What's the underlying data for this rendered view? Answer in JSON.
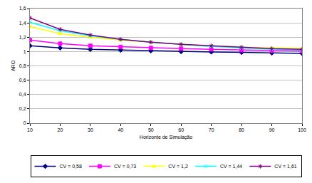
{
  "chart_data": {
    "type": "line",
    "x_label": "Horizonte de Simulação",
    "y_label": "ARO",
    "x": [
      10,
      20,
      30,
      40,
      50,
      60,
      70,
      80,
      90,
      100
    ],
    "series": [
      {
        "name": "CV = 0,58",
        "color": "#000080",
        "marker": "diamond",
        "values": [
          1.08,
          1.05,
          1.03,
          1.02,
          1.01,
          1.0,
          0.995,
          0.99,
          0.98,
          0.975
        ]
      },
      {
        "name": "CV = 0,73",
        "color": "#ff00ff",
        "marker": "square",
        "values": [
          1.16,
          1.11,
          1.08,
          1.065,
          1.05,
          1.04,
          1.03,
          1.02,
          1.01,
          1.005
        ]
      },
      {
        "name": "CV = 1,2",
        "color": "#ffff00",
        "marker": "triangle",
        "values": [
          1.35,
          1.25,
          1.2,
          1.16,
          1.13,
          1.1,
          1.08,
          1.06,
          1.05,
          1.04
        ]
      },
      {
        "name": "CV = 1,44",
        "color": "#00ffff",
        "marker": "x",
        "values": [
          1.41,
          1.29,
          1.22,
          1.17,
          1.13,
          1.1,
          1.07,
          1.05,
          1.03,
          1.02
        ]
      },
      {
        "name": "CV = 1,61",
        "color": "#800080",
        "marker": "star",
        "values": [
          1.47,
          1.31,
          1.23,
          1.17,
          1.13,
          1.1,
          1.08,
          1.06,
          1.04,
          1.03
        ]
      }
    ],
    "xlim": [
      10,
      100
    ],
    "xticks": [
      10,
      20,
      30,
      40,
      50,
      60,
      70,
      80,
      90,
      100
    ],
    "ylim": [
      0,
      1.6
    ],
    "yticks": [
      0,
      {
        "value": 0.2,
        "label": "0,2"
      },
      {
        "value": 0.4,
        "label": "0,4"
      },
      {
        "value": 0.6,
        "label": "0,6"
      },
      {
        "value": 0.8,
        "label": "0,8"
      },
      1,
      {
        "value": 1.2,
        "label": "1,2"
      },
      {
        "value": 1.4,
        "label": "1,4"
      },
      {
        "value": 1.6,
        "label": "1,6"
      }
    ],
    "grid": true,
    "legend": "bottom"
  }
}
